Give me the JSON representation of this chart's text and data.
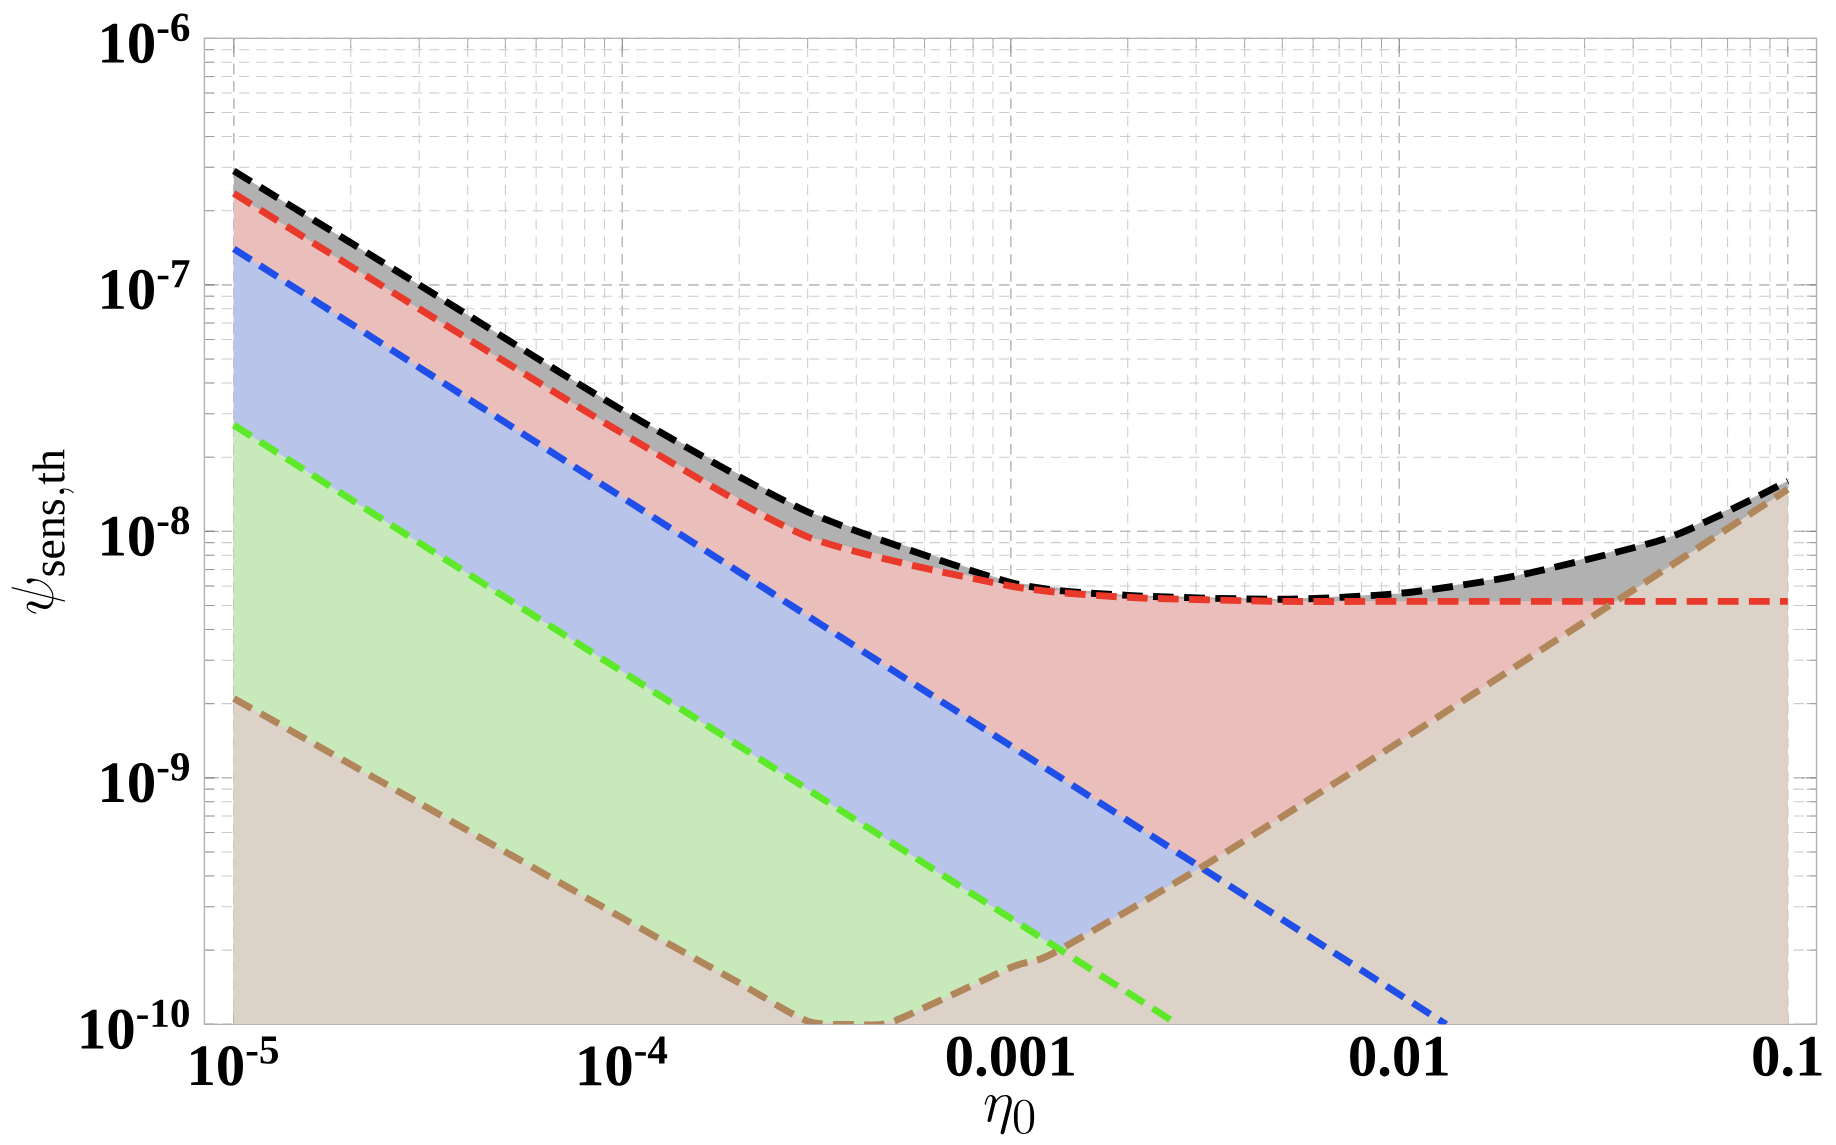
{
  "chart_data": {
    "type": "area",
    "xlabel": "\\eta_0",
    "ylabel": "\\psi_{\\rm sens,th}",
    "log": "xy",
    "grid": true,
    "line_style": "dashed",
    "xlim": [
      8.4e-06,
      0.1186
    ],
    "ylim": [
      1e-10,
      1e-06
    ],
    "xticks": [
      {
        "value": 1e-05,
        "label": "10$^{-5}$"
      },
      {
        "value": 0.0001,
        "label": "10$^{-4}$"
      },
      0.001,
      0.01,
      0.1
    ],
    "yticks": [
      {
        "value": 1e-10,
        "label": "10$^{-10}$"
      },
      {
        "value": 1e-09,
        "label": "10$^{-9}$"
      },
      {
        "value": 1e-08,
        "label": "10$^{-8}$"
      },
      {
        "value": 1e-07,
        "label": "10$^{-7}$"
      },
      {
        "value": 1e-06,
        "label": "10$^{-6}$"
      }
    ],
    "series": [
      {
        "color": "#000000",
        "x": [
          1e-05,
          3e-05,
          0.0001,
          0.0003,
          0.001,
          0.002,
          0.005,
          0.01,
          0.02,
          0.05,
          0.1
        ],
        "values": [
          2.9e-07,
          1e-07,
          3.1e-08,
          1.2e-08,
          6.2e-09,
          5.5e-09,
          5.3e-09,
          5.6e-09,
          6.6e-09,
          9.5e-09,
          1.6e-08
        ]
      },
      {
        "color": "#e8392a",
        "x": [
          1e-05,
          3e-05,
          0.0001,
          0.0003,
          0.001,
          0.002,
          0.005,
          0.01,
          0.1
        ],
        "values": [
          2.35e-07,
          8e-08,
          2.5e-08,
          9.5e-09,
          6e-09,
          5.4e-09,
          5.2e-09,
          5.2e-09,
          5.2e-09
        ]
      },
      {
        "color": "#1f4fe8",
        "x": [
          1e-05,
          0.0132
        ],
        "values": [
          1.4e-07,
          1e-10
        ]
      },
      {
        "color": "#5ee82a",
        "x": [
          1e-05,
          0.00269
        ],
        "values": [
          2.7e-08,
          1e-10
        ]
      },
      {
        "color": "#b0865a",
        "x": [
          1e-05,
          3e-05,
          0.0001,
          0.0002,
          0.0003,
          0.0004,
          0.0005,
          0.001,
          0.00129,
          0.00329,
          0.01,
          0.03,
          0.1
        ],
        "values": [
          2.1e-09,
          7.9e-10,
          2.7e-10,
          1.47e-10,
          1.03e-10,
          1e-10,
          1.03e-10,
          1.7e-10,
          1.95e-10,
          4.6e-10,
          1.4e-09,
          4.3e-09,
          1.48e-08
        ]
      }
    ]
  }
}
